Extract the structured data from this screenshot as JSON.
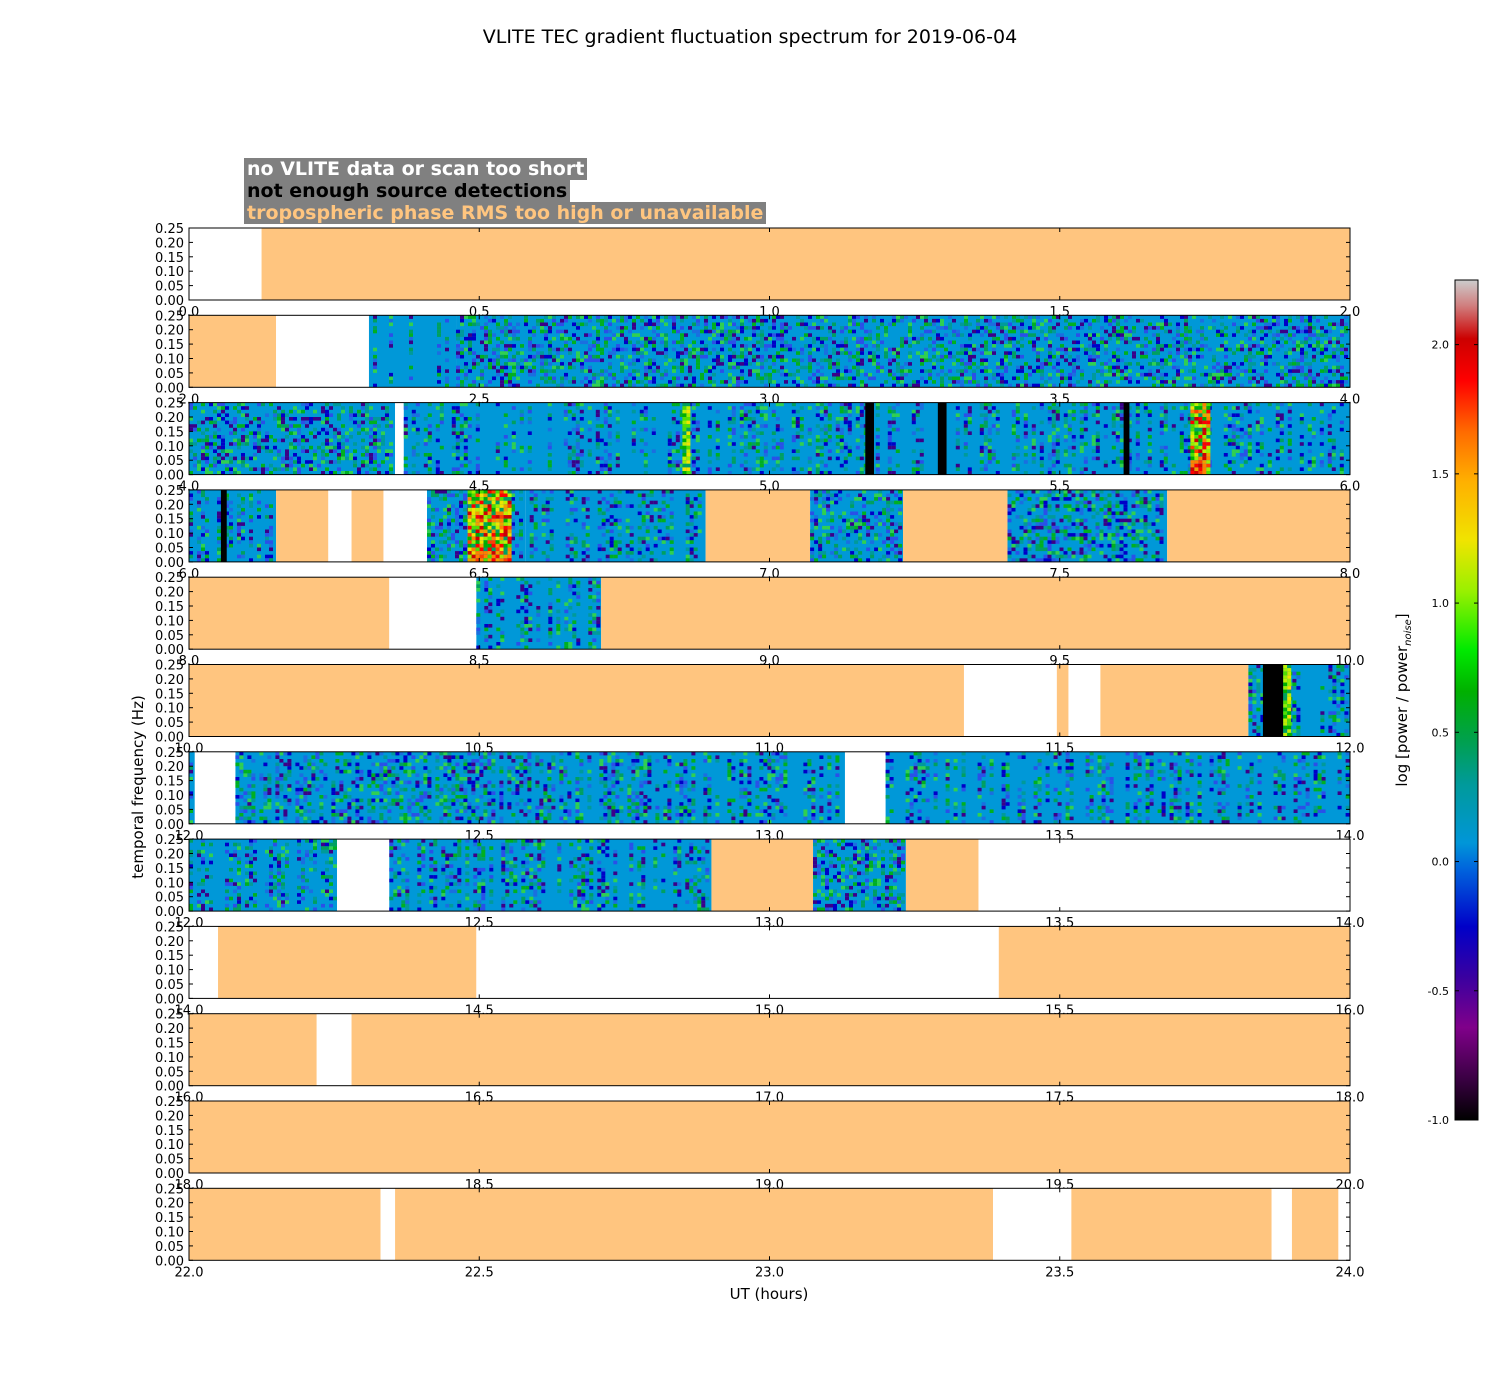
{
  "colors": {
    "no_data": "#ffffff",
    "no_detections": "#000000",
    "tropo": "#ffc57f",
    "legend_bg": "#808080",
    "spec_base": "#0098d8"
  },
  "legend": {
    "items": [
      {
        "label": "no VLITE data or scan too short",
        "color": "#ffffff"
      },
      {
        "label": "not enough source detections",
        "color": "#000000"
      },
      {
        "label": "tropospheric phase RMS too high or unavailable",
        "color": "#ffc57f"
      }
    ]
  },
  "chart_data": {
    "type": "heatmap",
    "title": "VLITE TEC gradient fluctuation spectrum for 2019-06-04",
    "xlabel": "UT (hours)",
    "ylabel": "temporal frequency (Hz)",
    "ylim": [
      0,
      0.25
    ],
    "y_ticks": [
      "0.00",
      "0.05",
      "0.10",
      "0.15",
      "0.20",
      "0.25"
    ],
    "colorbar": {
      "label": "log [power / power",
      "label_sub": "noise",
      "label_end": "]",
      "range": [
        -1.0,
        2.25
      ],
      "ticks": [
        "-1.0",
        "-0.5",
        "0.0",
        "0.5",
        "1.0",
        "1.5",
        "2.0"
      ],
      "tick_values": [
        -1.0,
        -0.5,
        0.0,
        0.5,
        1.0,
        1.5,
        2.0
      ]
    },
    "panels": [
      {
        "x_range": [
          0,
          2
        ],
        "x_ticks": [
          "0.0",
          "0.5",
          "1.0",
          "1.5",
          "2.0"
        ],
        "segments": [
          {
            "s": 0,
            "e": 0.125,
            "k": "white"
          },
          {
            "s": 0.125,
            "e": 2,
            "k": "tropo"
          }
        ]
      },
      {
        "x_range": [
          2,
          4
        ],
        "x_ticks": [
          "2.0",
          "2.5",
          "3.0",
          "3.5",
          "4.0"
        ],
        "segments": [
          {
            "s": 2,
            "e": 2.15,
            "k": "tropo"
          },
          {
            "s": 2.15,
            "e": 2.31,
            "k": "white"
          },
          {
            "s": 2.31,
            "e": 2.46,
            "k": "spec",
            "h": 0.1
          },
          {
            "s": 2.46,
            "e": 4,
            "k": "spec",
            "h": 0.75
          }
        ],
        "marks": []
      },
      {
        "x_range": [
          4,
          6
        ],
        "x_ticks": [
          "4.0",
          "4.5",
          "5.0",
          "5.5",
          "6.0"
        ],
        "segments": [
          {
            "s": 4,
            "e": 4.355,
            "k": "spec",
            "h": 0.75
          },
          {
            "s": 4.355,
            "e": 4.37,
            "k": "white"
          },
          {
            "s": 4.37,
            "e": 6,
            "k": "spec",
            "h": 0.35
          }
        ],
        "marks": [
          {
            "s": 5.165,
            "e": 5.18,
            "k": "black"
          },
          {
            "s": 5.29,
            "e": 5.305,
            "k": "black"
          },
          {
            "s": 5.61,
            "e": 5.62,
            "k": "black"
          },
          {
            "s": 5.725,
            "e": 5.76,
            "k": "hot"
          },
          {
            "s": 4.85,
            "e": 4.87,
            "k": "warm"
          }
        ]
      },
      {
        "x_range": [
          6,
          8
        ],
        "x_ticks": [
          "6.0",
          "6.5",
          "7.0",
          "7.5",
          "8.0"
        ],
        "segments": [
          {
            "s": 6,
            "e": 6.15,
            "k": "spec",
            "h": 0.25
          },
          {
            "s": 6.15,
            "e": 6.24,
            "k": "tropo"
          },
          {
            "s": 6.24,
            "e": 6.28,
            "k": "white"
          },
          {
            "s": 6.28,
            "e": 6.335,
            "k": "tropo"
          },
          {
            "s": 6.335,
            "e": 6.41,
            "k": "white"
          },
          {
            "s": 6.41,
            "e": 6.58,
            "k": "spec",
            "h": 0.8
          },
          {
            "s": 6.58,
            "e": 6.89,
            "k": "spec",
            "h": 0.3
          },
          {
            "s": 6.89,
            "e": 7.07,
            "k": "tropo"
          },
          {
            "s": 7.07,
            "e": 7.23,
            "k": "spec",
            "h": 0.85
          },
          {
            "s": 7.23,
            "e": 7.41,
            "k": "tropo"
          },
          {
            "s": 7.41,
            "e": 7.685,
            "k": "spec",
            "h": 0.85
          },
          {
            "s": 7.685,
            "e": 8,
            "k": "tropo"
          }
        ],
        "marks": [
          {
            "s": 6.055,
            "e": 6.065,
            "k": "black"
          },
          {
            "s": 6.48,
            "e": 6.56,
            "k": "hot"
          }
        ]
      },
      {
        "x_range": [
          8,
          10
        ],
        "x_ticks": [
          "8.0",
          "8.5",
          "9.0",
          "9.5",
          "10.0"
        ],
        "segments": [
          {
            "s": 8,
            "e": 8.345,
            "k": "tropo"
          },
          {
            "s": 8.345,
            "e": 8.495,
            "k": "white"
          },
          {
            "s": 8.495,
            "e": 8.71,
            "k": "spec",
            "h": 0.45
          },
          {
            "s": 8.71,
            "e": 10,
            "k": "tropo"
          }
        ]
      },
      {
        "x_range": [
          10,
          12
        ],
        "x_ticks": [
          "10.0",
          "10.5",
          "11.0",
          "11.5",
          "12.0"
        ],
        "segments": [
          {
            "s": 10,
            "e": 11.335,
            "k": "tropo"
          },
          {
            "s": 11.335,
            "e": 11.495,
            "k": "white"
          },
          {
            "s": 11.495,
            "e": 11.515,
            "k": "tropo"
          },
          {
            "s": 11.515,
            "e": 11.57,
            "k": "white"
          },
          {
            "s": 11.57,
            "e": 11.825,
            "k": "tropo"
          },
          {
            "s": 11.825,
            "e": 12,
            "k": "spec",
            "h": 0.35
          }
        ],
        "marks": [
          {
            "s": 11.85,
            "e": 11.885,
            "k": "black"
          },
          {
            "s": 11.885,
            "e": 11.905,
            "k": "warm"
          }
        ]
      },
      {
        "x_range": [
          12,
          14
        ],
        "x_ticks": [
          "12.0",
          "12.5",
          "13.0",
          "13.5",
          "14.0"
        ],
        "segments": [
          {
            "s": 12,
            "e": 12.01,
            "k": "spec",
            "h": 0.5
          },
          {
            "s": 12.01,
            "e": 12.08,
            "k": "white"
          },
          {
            "s": 12.08,
            "e": 13.13,
            "k": "spec",
            "h": 0.55
          },
          {
            "s": 13.13,
            "e": 13.2,
            "k": "white"
          },
          {
            "s": 13.2,
            "e": 14,
            "k": "spec",
            "h": 0.3
          }
        ]
      },
      {
        "x_range": [
          12,
          14
        ],
        "x_ticks": [
          "12.0",
          "12.5",
          "13.0",
          "13.5",
          "14.0"
        ],
        "segments": [
          {
            "s": 12,
            "e": 12.255,
            "k": "spec",
            "h": 0.5
          },
          {
            "s": 12.255,
            "e": 12.345,
            "k": "white"
          },
          {
            "s": 12.345,
            "e": 12.9,
            "k": "spec",
            "h": 0.45
          },
          {
            "s": 12.9,
            "e": 13.075,
            "k": "tropo"
          },
          {
            "s": 13.075,
            "e": 13.235,
            "k": "spec",
            "h": 0.9
          },
          {
            "s": 13.235,
            "e": 13.36,
            "k": "tropo"
          },
          {
            "s": 13.36,
            "e": 14,
            "k": "white"
          }
        ]
      },
      {
        "x_range": [
          14,
          16
        ],
        "x_ticks": [
          "14.0",
          "14.5",
          "15.0",
          "15.5",
          "16.0"
        ],
        "segments": [
          {
            "s": 14,
            "e": 14.05,
            "k": "white"
          },
          {
            "s": 14.05,
            "e": 14.495,
            "k": "tropo"
          },
          {
            "s": 14.495,
            "e": 15.395,
            "k": "white"
          },
          {
            "s": 15.395,
            "e": 16,
            "k": "tropo"
          }
        ]
      },
      {
        "x_range": [
          16,
          18
        ],
        "x_ticks": [
          "16.0",
          "16.5",
          "17.0",
          "17.5",
          "18.0"
        ],
        "segments": [
          {
            "s": 16,
            "e": 16.22,
            "k": "tropo"
          },
          {
            "s": 16.22,
            "e": 16.28,
            "k": "white"
          },
          {
            "s": 16.28,
            "e": 18,
            "k": "tropo"
          }
        ]
      },
      {
        "x_range": [
          18,
          20
        ],
        "x_ticks": [
          "18.0",
          "18.5",
          "19.0",
          "19.5",
          "20.0"
        ],
        "segments": [
          {
            "s": 18,
            "e": 20,
            "k": "tropo"
          }
        ]
      },
      {
        "x_range": [
          22,
          24
        ],
        "x_ticks": [
          "22.0",
          "22.5",
          "23.0",
          "23.5",
          "24.0"
        ],
        "segments": [
          {
            "s": 22,
            "e": 22.33,
            "k": "tropo"
          },
          {
            "s": 22.33,
            "e": 22.355,
            "k": "white"
          },
          {
            "s": 22.355,
            "e": 23.385,
            "k": "tropo"
          },
          {
            "s": 23.385,
            "e": 23.52,
            "k": "white"
          },
          {
            "s": 23.52,
            "e": 23.865,
            "k": "tropo"
          },
          {
            "s": 23.865,
            "e": 23.9,
            "k": "white"
          },
          {
            "s": 23.9,
            "e": 23.98,
            "k": "tropo"
          },
          {
            "s": 23.98,
            "e": 24,
            "k": "white"
          }
        ]
      }
    ]
  }
}
